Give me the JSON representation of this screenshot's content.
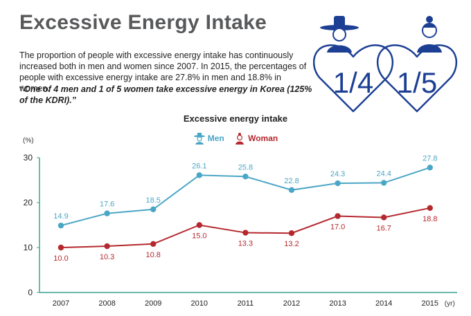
{
  "page": {
    "title": "Excessive Energy Intake",
    "description": "The proportion of people with excessive energy intake has continuously increased both in men and women since 2007. In 2015, the percentages of people with excessive energy intake are 27.8% in men and 18.8% in women.",
    "quote": "“One of 4 men and 1 of 5 women take excessive energy in Korea (125% of the KDRI).”",
    "hero": {
      "men_fraction": "1/4",
      "women_fraction": "1/5",
      "icon_men": "man-in-gat-icon",
      "icon_women": "woman-hanbok-icon",
      "color": "#1c3f94"
    }
  },
  "chart_data": {
    "type": "line",
    "title": "Excessive energy intake",
    "ylabel": "(%)",
    "xunit": "(yr)",
    "categories": [
      "2007",
      "2008",
      "2009",
      "2010",
      "2011",
      "2012",
      "2013",
      "2014",
      "2015"
    ],
    "yticks": [
      0,
      10,
      20,
      30
    ],
    "ylim": [
      0,
      30
    ],
    "grid": false,
    "legend_position": "top-center",
    "series": [
      {
        "name": "Men",
        "color": "#4aa6c6",
        "values": [
          14.9,
          17.6,
          18.5,
          26.1,
          25.8,
          22.8,
          24.3,
          24.4,
          27.8
        ]
      },
      {
        "name": "Woman",
        "color": "#b5282e",
        "values": [
          10.0,
          10.3,
          10.8,
          15.0,
          13.3,
          13.2,
          17.0,
          16.7,
          18.8
        ]
      }
    ]
  }
}
